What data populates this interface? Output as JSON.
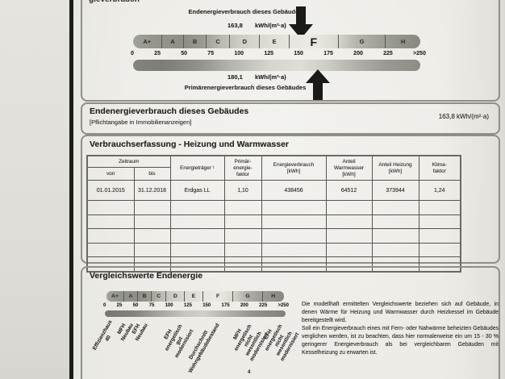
{
  "colors": {
    "arrow": "#1a1a18",
    "page_background": "#edebe6",
    "box_border": "#8f8f8a",
    "band_dark": "#8e8e87",
    "band_light": "#ebebe4"
  },
  "scale_section": {
    "clipped_heading_fragment": "gieverbrauch",
    "top_label": "Endenergieverbrauch dieses Gebäudes",
    "top_value": "163,8",
    "top_unit": "kWh/(m²·a)",
    "bands": [
      "A+",
      "A",
      "B",
      "C",
      "D",
      "E",
      "F",
      "G",
      "H"
    ],
    "highlight_band": "F",
    "ticks": [
      "0",
      "25",
      "50",
      "75",
      "100",
      "125",
      "150",
      "175",
      "200",
      "225",
      ">250"
    ],
    "bottom_value": "180,1",
    "bottom_unit": "kWh/(m²·a)",
    "bottom_label": "Primärenergieverbrauch dieses Gebäudes"
  },
  "endenergie_section": {
    "title": "Endenergieverbrauch dieses Gebäudes",
    "subtitle": "[Pflichtangabe in Immobilienanzeigen]",
    "value": "163,8 kWh/(m²·a)"
  },
  "verbrauch_section": {
    "title": "Verbrauchserfassung - Heizung und Warmwasser",
    "table": {
      "group_header": "Zeitraum",
      "sub_headers": [
        "von",
        "bis"
      ],
      "columns": [
        "Energieträger ¹",
        "Primär-\nenergie-\nfaktor",
        "Energieverbrauch\n[kWh]",
        "Anteil\nWarmwasser\n[kWh]",
        "Anteil Heizung\n[kWh]",
        "Klima-\nfaktor"
      ],
      "rows": [
        [
          "01.01.2015",
          "31.12.2018",
          "Erdgas LL",
          "1,10",
          "438456",
          "64512",
          "373944",
          "1,24"
        ]
      ],
      "empty_rows": 5
    }
  },
  "vergleich_section": {
    "title": "Vergleichswerte Endenergie",
    "bands": [
      "A+",
      "A",
      "B",
      "C",
      "D",
      "E",
      "F",
      "G",
      "H"
    ],
    "ticks": [
      "0",
      "25",
      "50",
      "75",
      "100",
      "125",
      "150",
      "175",
      "200",
      "225",
      ">250"
    ],
    "rotated_labels": [
      "Effizienzhaus 40",
      "MFH Neubau",
      "EFH Neubau",
      "EFH energetisch\ngut modernisiert",
      "Durchschnitt\nWohngebäudebestand",
      "MFH energetisch nicht\nwesentlich modernisiert",
      "EFH energetisch nicht\nwesentlich modernisiert"
    ],
    "footnote_mark": "4",
    "paragraphs": [
      "Die modellhaft ermittelten Vergleichswerte beziehen sich auf Gebäude, in denen Wärme für Heizung und Warmwasser durch Heizkessel im Gebäude bereitgestellt wird.",
      "Soll ein Energieverbrauch eines mit Fern- oder Nahwärme beheizten Gebäudes verglichen werden, ist zu beachten, dass hier normalerweise ein um 15 - 30 % geringerer Energieverbrauch als bei vergleichbaren Gebäuden mit Kesselheizung zu erwarten ist."
    ]
  }
}
